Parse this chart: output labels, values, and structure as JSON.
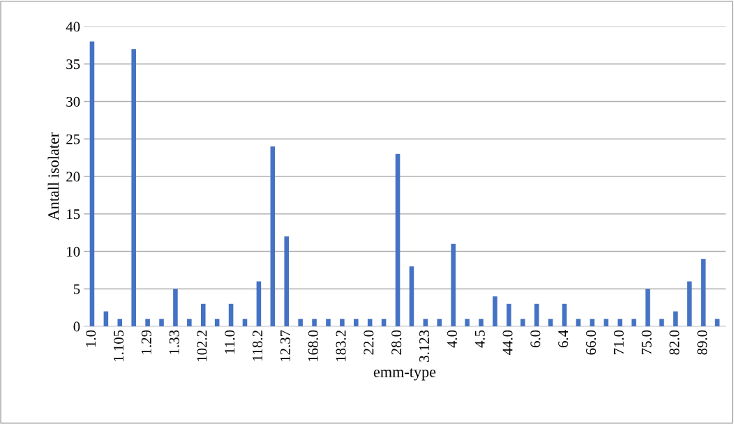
{
  "chart_data": {
    "type": "bar",
    "xlabel": "emm-type",
    "ylabel": "Antall isolater",
    "categories": [
      "1.0",
      null,
      "1.105",
      null,
      "1.29",
      null,
      "1.33",
      null,
      "102.2",
      null,
      "11.0",
      null,
      "118.2",
      null,
      "12.37",
      null,
      "168.0",
      null,
      "183.2",
      null,
      "22.0",
      null,
      "28.0",
      null,
      "3.123",
      null,
      "4.0",
      null,
      "4.5",
      null,
      "44.0",
      null,
      "6.0",
      null,
      "6.4",
      null,
      "66.0",
      null,
      "71.0",
      null,
      "75.0",
      null,
      "82.0",
      null,
      "89.0",
      null
    ],
    "values": [
      38,
      2,
      1,
      37,
      1,
      1,
      5,
      1,
      3,
      1,
      3,
      1,
      6,
      24,
      12,
      1,
      1,
      1,
      1,
      1,
      1,
      1,
      23,
      8,
      1,
      1,
      11,
      1,
      1,
      4,
      3,
      1,
      3,
      1,
      3,
      1,
      1,
      1,
      1,
      1,
      5,
      1,
      2,
      6,
      9,
      1
    ],
    "color": "#4472c4",
    "ylim": [
      0,
      40
    ],
    "yticks": [
      0,
      5,
      10,
      15,
      20,
      25,
      30,
      35,
      40
    ],
    "grid": "y"
  }
}
